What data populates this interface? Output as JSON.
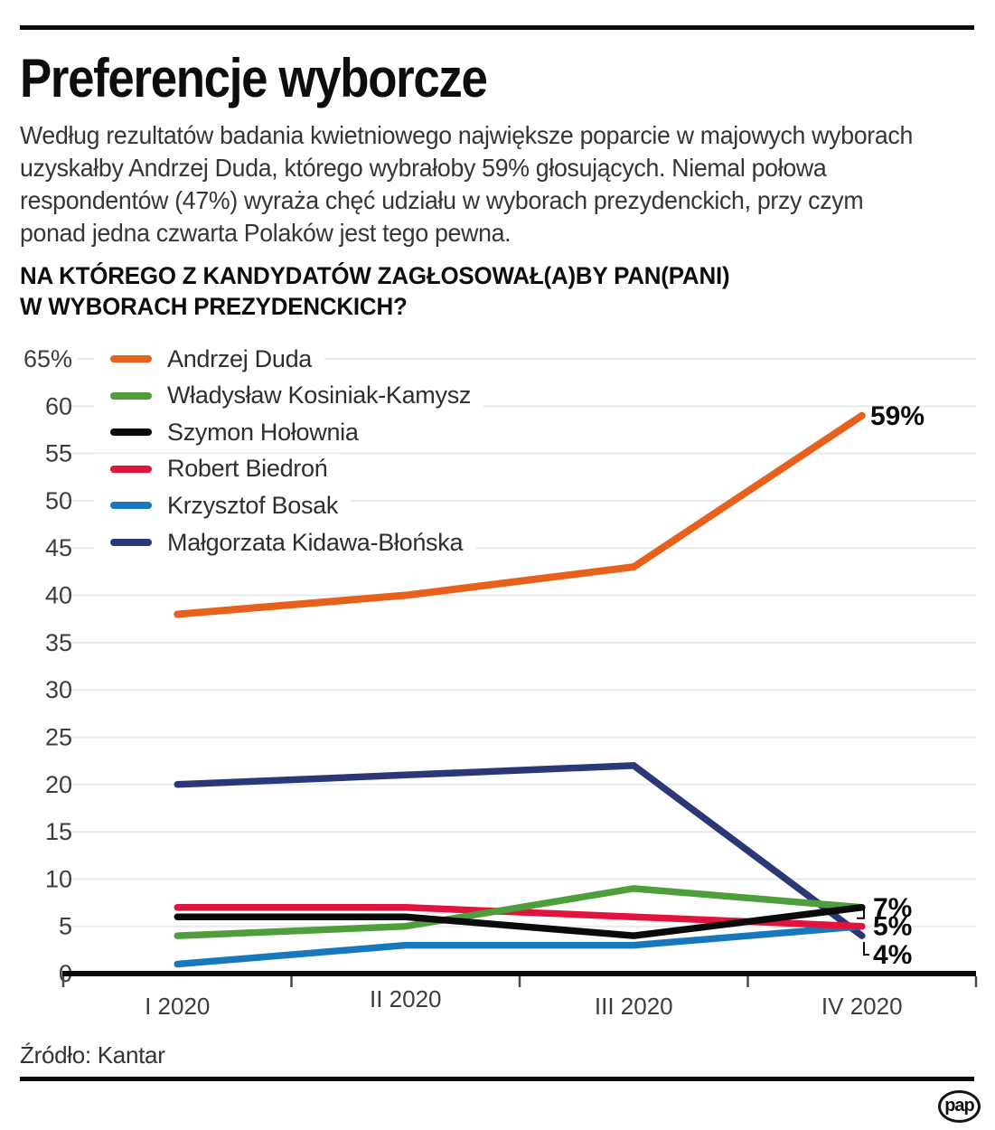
{
  "page": {
    "title": "Preferencje wyborcze",
    "intro_lines": [
      "Według rezultatów badania kwietniowego największe poparcie w majowych wyborach",
      "uzyskałby Andrzej Duda, którego wybrałoby 59% głosujących. Niemal połowa",
      "respondentów (47%) wyraża chęć udziału w wyborach prezydenckich, przy czym",
      "ponad jedna czwarta Polaków jest tego pewna."
    ],
    "question_lines": [
      "NA KTÓREGO Z KANDYDATÓW ZAGŁOSOWAŁ(A)BY PAN(PANI)",
      "W WYBORACH PREZYDENCKICH?"
    ],
    "source": "Źródło: Kantar",
    "logo_text": "pap"
  },
  "chart_data": {
    "type": "line",
    "categories": [
      "I 2020",
      "II 2020",
      "III 2020",
      "IV 2020"
    ],
    "series": [
      {
        "name": "Andrzej Duda",
        "color": "#E8611C",
        "values": [
          38,
          40,
          43,
          59
        ]
      },
      {
        "name": "Władysław Kosiniak-Kamysz",
        "color": "#4E9E3C",
        "values": [
          4,
          5,
          9,
          7
        ]
      },
      {
        "name": "Szymon Hołownia",
        "color": "#0A0A0A",
        "values": [
          6,
          6,
          4,
          7
        ]
      },
      {
        "name": "Robert Biedroń",
        "color": "#E0143C",
        "values": [
          7,
          7,
          6,
          5
        ]
      },
      {
        "name": "Krzysztof Bosak",
        "color": "#1878BE",
        "values": [
          1,
          3,
          3,
          5
        ]
      },
      {
        "name": "Małgorzata Kidawa-Błońska",
        "color": "#2B3878",
        "values": [
          20,
          21,
          22,
          4
        ]
      }
    ],
    "ylim": [
      0,
      65
    ],
    "ytick_labels": [
      "0",
      "5",
      "10",
      "15",
      "20",
      "25",
      "30",
      "35",
      "40",
      "45",
      "50",
      "55",
      "60",
      "65%"
    ],
    "grid": true,
    "gridline_color": "#E7EBED",
    "axis_color": "#0A0A0A",
    "tick_label_color": "#3D3D3D",
    "legend_position": "inside-top-left",
    "end_labels": [
      {
        "text": "59%",
        "series_index": 0
      },
      {
        "text": "7%",
        "series_index": 2,
        "connector": "hook-up"
      },
      {
        "text": "5%",
        "series_index": 3
      },
      {
        "text": "4%",
        "series_index": 5,
        "connector": "hook-down"
      }
    ]
  }
}
